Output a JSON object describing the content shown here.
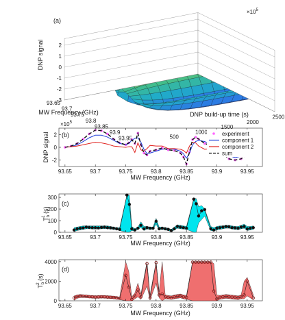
{
  "chart_data": [
    {
      "panel": "(a)",
      "type": "surface",
      "exponent": "×10^5",
      "xlabel": "MW Frequency (GHz)",
      "ylabel": "DNP build-up time (s)",
      "zlabel": "DNP signal",
      "x_ticks": [
        "93.65",
        "93.7",
        "93.75",
        "93.8",
        "93.85",
        "93.9",
        "93.95"
      ],
      "y_ticks": [
        "500",
        "1000",
        "1500",
        "2000",
        "2500"
      ],
      "z_ticks": [
        "-3",
        "-2",
        "-1",
        "0",
        "1",
        "2"
      ],
      "xlim": [
        93.65,
        93.97
      ],
      "ylim": [
        0,
        2600
      ],
      "zlim": [
        -3,
        2.6
      ],
      "grid": true
    },
    {
      "panel": "(b)",
      "type": "line",
      "exponent": "×10^5",
      "xlabel": "MW Frequency (GHz)",
      "ylabel": "DNP signal",
      "xlim": [
        93.64,
        93.975
      ],
      "ylim": [
        -3,
        3
      ],
      "x_ticks": [
        "93.65",
        "93.7",
        "93.75",
        "93.8",
        "93.85",
        "93.9",
        "93.95"
      ],
      "y_ticks": [
        "-2",
        "0",
        "2"
      ],
      "legend_position": "top-right",
      "legend": [
        "experiment",
        "component 1",
        "component 2",
        "sum"
      ],
      "x": [
        93.65,
        93.66,
        93.67,
        93.68,
        93.69,
        93.7,
        93.71,
        93.72,
        93.73,
        93.74,
        93.75,
        93.755,
        93.76,
        93.765,
        93.77,
        93.775,
        93.78,
        93.785,
        93.79,
        93.8,
        93.81,
        93.82,
        93.83,
        93.84,
        93.845,
        93.85,
        93.855,
        93.86,
        93.865,
        93.87,
        93.88,
        93.89,
        93.9,
        93.91,
        93.92,
        93.93,
        93.94,
        93.95,
        93.96,
        93.97
      ],
      "series": [
        {
          "name": "experiment",
          "color": "#ff66ff",
          "values": [
            0,
            0.2,
            0.6,
            1.3,
            2.1,
            2.7,
            2.6,
            2.1,
            1.3,
            0.7,
            0.4,
            0.7,
            1.2,
            0.6,
            2.2,
            0.4,
            -0.9,
            -1.2,
            -0.6,
            -0.4,
            -0.1,
            -0.4,
            -0.5,
            -0.9,
            -1.5,
            -2.6,
            -0.7,
            1.2,
            1.6,
            1.3,
            0.6,
            0.3,
            -0.3,
            -1.0,
            -1.8,
            -2.0,
            -1.8,
            -1.1,
            -0.6,
            -0.3
          ]
        },
        {
          "name": "component 1",
          "color": "#1f3fd8",
          "values": [
            0,
            0.1,
            0.4,
            0.9,
            1.5,
            1.9,
            1.9,
            1.6,
            1.1,
            0.6,
            0.4,
            0.6,
            1.1,
            1.4,
            1.5,
            0.8,
            -0.3,
            -1.0,
            -0.9,
            -0.6,
            -0.3,
            -0.2,
            -0.3,
            -0.6,
            -1.0,
            -1.7,
            -0.9,
            0.4,
            0.9,
            1.1,
            0.9,
            0.5,
            -0.1,
            -0.7,
            -1.3,
            -1.6,
            -1.4,
            -0.9,
            -0.5,
            -0.2
          ]
        },
        {
          "name": "component 2",
          "color": "#e0201c",
          "values": [
            0,
            0.1,
            0.2,
            0.4,
            0.6,
            0.8,
            0.7,
            0.5,
            0.2,
            0.1,
            0,
            0.1,
            0.1,
            -0.8,
            0.7,
            -0.4,
            -0.6,
            -0.2,
            0.3,
            0.2,
            0.2,
            -0.2,
            -0.2,
            -0.3,
            -0.5,
            -0.9,
            0.2,
            0.8,
            0.7,
            0.2,
            -0.3,
            -0.2,
            -0.2,
            -0.3,
            -0.5,
            -0.4,
            -0.4,
            -0.2,
            -0.1,
            -0.1
          ]
        },
        {
          "name": "sum",
          "color": "#111111",
          "values": [
            0,
            0.2,
            0.6,
            1.3,
            2.1,
            2.7,
            2.6,
            2.1,
            1.3,
            0.7,
            0.4,
            0.7,
            1.2,
            0.6,
            2.2,
            0.4,
            -0.9,
            -1.2,
            -0.6,
            -0.4,
            -0.1,
            -0.4,
            -0.5,
            -0.9,
            -1.5,
            -2.6,
            -0.7,
            1.2,
            1.6,
            1.3,
            0.6,
            0.3,
            -0.3,
            -1.0,
            -1.8,
            -2.0,
            -1.8,
            -1.1,
            -0.6,
            -0.3
          ]
        }
      ]
    },
    {
      "panel": "(c)",
      "type": "scatter",
      "xlabel": "MW Frequency (GHz)",
      "ylabel_main": "T",
      "ylabel_sub": "b",
      "ylabel_sup": "1",
      "ylabel_unit": "(s)",
      "xlim": [
        93.64,
        93.975
      ],
      "ylim": [
        0,
        330
      ],
      "x_ticks": [
        "93.65",
        "93.7",
        "93.75",
        "93.8",
        "93.85",
        "93.9",
        "93.95"
      ],
      "y_ticks": [
        "0",
        "100",
        "200",
        "300"
      ],
      "band_color": "#00e5ee",
      "marker_color": "#111111",
      "x": [
        93.665,
        93.67,
        93.675,
        93.68,
        93.685,
        93.69,
        93.695,
        93.7,
        93.705,
        93.71,
        93.715,
        93.72,
        93.725,
        93.73,
        93.735,
        93.74,
        93.752,
        93.756,
        93.76,
        93.765,
        93.77,
        93.775,
        93.78,
        93.785,
        93.79,
        93.795,
        93.8,
        93.805,
        93.81,
        93.815,
        93.82,
        93.825,
        93.83,
        93.835,
        93.84,
        93.845,
        93.85,
        93.862,
        93.866,
        93.87,
        93.875,
        93.88,
        93.89,
        93.895,
        93.9,
        93.905,
        93.91,
        93.915,
        93.92,
        93.925,
        93.93,
        93.935,
        93.94,
        93.945,
        93.95,
        93.955,
        93.96
      ],
      "values": [
        20,
        30,
        35,
        38,
        45,
        42,
        40,
        40,
        38,
        42,
        45,
        40,
        38,
        35,
        30,
        25,
        320,
        240,
        30,
        20,
        35,
        60,
        30,
        40,
        35,
        35,
        95,
        30,
        35,
        30,
        25,
        15,
        30,
        50,
        45,
        40,
        35,
        285,
        245,
        140,
        185,
        195,
        30,
        20,
        35,
        40,
        45,
        50,
        48,
        40,
        38,
        35,
        45,
        50,
        30,
        35,
        40
      ],
      "band_upper": [
        40,
        45,
        50,
        55,
        55,
        55,
        55,
        55,
        55,
        55,
        55,
        55,
        50,
        45,
        40,
        40,
        320,
        320,
        50,
        30,
        45,
        90,
        50,
        50,
        45,
        45,
        120,
        45,
        45,
        40,
        35,
        25,
        45,
        65,
        60,
        55,
        50,
        290,
        290,
        220,
        230,
        200,
        50,
        40,
        50,
        55,
        55,
        60,
        60,
        55,
        50,
        50,
        60,
        70,
        50,
        50,
        55
      ],
      "band_lower": [
        5,
        15,
        20,
        25,
        30,
        30,
        28,
        28,
        28,
        30,
        32,
        30,
        28,
        25,
        22,
        15,
        0,
        0,
        15,
        10,
        25,
        40,
        15,
        28,
        25,
        25,
        70,
        20,
        25,
        20,
        15,
        5,
        20,
        35,
        30,
        28,
        25,
        0,
        0,
        80,
        110,
        140,
        15,
        10,
        20,
        25,
        30,
        35,
        35,
        28,
        25,
        22,
        30,
        35,
        15,
        20,
        25
      ]
    },
    {
      "panel": "(d)",
      "type": "scatter",
      "xlabel": "MW Frequency (GHz)",
      "ylabel_main": "T",
      "ylabel_sub": "b",
      "ylabel_sup": "2",
      "ylabel_unit": "(s)",
      "xlim": [
        93.64,
        93.975
      ],
      "ylim": [
        0,
        4200
      ],
      "x_ticks": [
        "93.65",
        "93.7",
        "93.75",
        "93.8",
        "93.85",
        "93.9",
        "93.95"
      ],
      "y_ticks": [
        "0",
        "2000",
        "4000"
      ],
      "band_color": "#ef6f6f",
      "marker_color": "#8a1a1a",
      "x": [
        93.665,
        93.67,
        93.675,
        93.68,
        93.685,
        93.69,
        93.695,
        93.7,
        93.705,
        93.71,
        93.715,
        93.72,
        93.725,
        93.73,
        93.735,
        93.74,
        93.75,
        93.755,
        93.76,
        93.765,
        93.77,
        93.775,
        93.785,
        93.79,
        93.8,
        93.805,
        93.81,
        93.815,
        93.82,
        93.825,
        93.83,
        93.835,
        93.84,
        93.845,
        93.85,
        93.86,
        93.865,
        93.87,
        93.875,
        93.88,
        93.885,
        93.89,
        93.895,
        93.9,
        93.905,
        93.91,
        93.915,
        93.92,
        93.925,
        93.93,
        93.935,
        93.94,
        93.945,
        93.95,
        93.96
      ],
      "values": [
        300,
        450,
        500,
        480,
        460,
        420,
        400,
        380,
        390,
        410,
        400,
        380,
        360,
        340,
        300,
        250,
        2600,
        1400,
        150,
        500,
        1100,
        400,
        3800,
        300,
        3900,
        600,
        700,
        400,
        350,
        300,
        400,
        450,
        500,
        400,
        350,
        3950,
        3950,
        3950,
        3950,
        3950,
        3950,
        3950,
        1000,
        200,
        350,
        400,
        450,
        420,
        380,
        350,
        320,
        400,
        600,
        2000,
        300
      ],
      "band_upper": [
        500,
        600,
        650,
        620,
        600,
        560,
        540,
        520,
        530,
        550,
        540,
        520,
        500,
        480,
        440,
        380,
        4000,
        3000,
        400,
        800,
        1800,
        700,
        4000,
        600,
        4000,
        900,
        4000,
        600,
        550,
        500,
        600,
        650,
        700,
        600,
        550,
        4000,
        4000,
        4000,
        4000,
        4000,
        4000,
        4000,
        3800,
        600,
        550,
        600,
        650,
        620,
        580,
        550,
        500,
        600,
        2000,
        2400,
        600
      ],
      "band_lower": [
        50,
        250,
        330,
        330,
        320,
        290,
        270,
        250,
        260,
        280,
        270,
        250,
        230,
        210,
        170,
        120,
        0,
        0,
        0,
        200,
        400,
        150,
        1500,
        80,
        1800,
        300,
        0,
        200,
        180,
        150,
        200,
        250,
        300,
        200,
        150,
        0,
        0,
        0,
        0,
        0,
        0,
        0,
        0,
        0,
        150,
        200,
        250,
        220,
        180,
        150,
        120,
        200,
        200,
        500,
        100
      ]
    }
  ]
}
